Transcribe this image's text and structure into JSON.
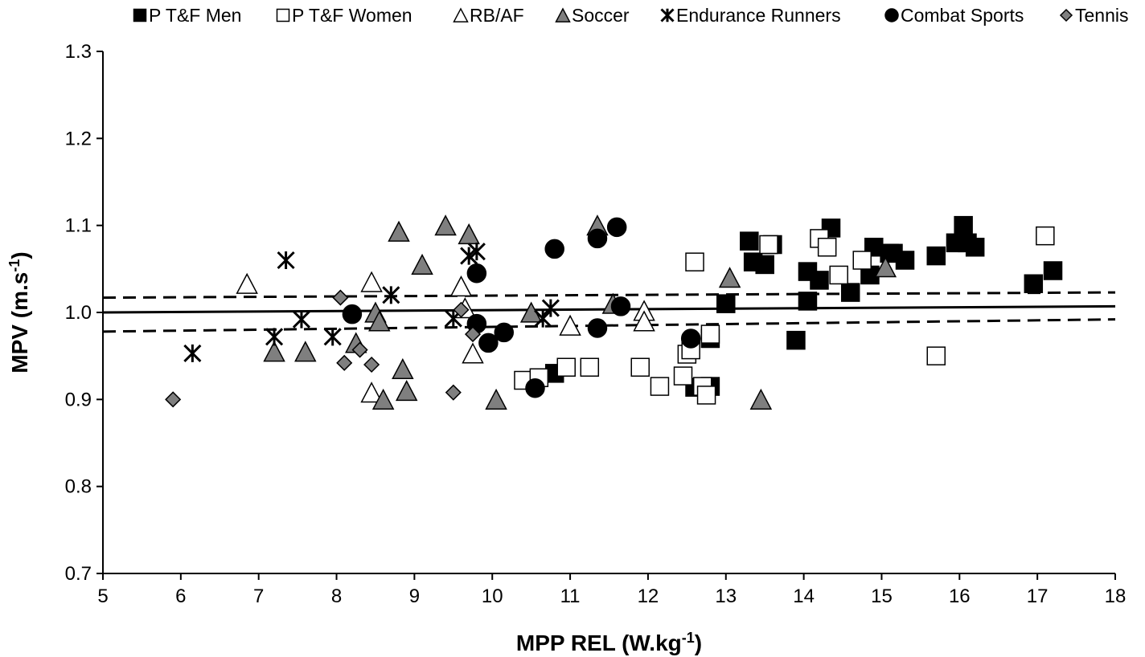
{
  "chart_data": {
    "type": "scatter",
    "title": "",
    "xlabel": "MPP REL (W.kg",
    "xlabel_sup": "-1",
    "xlabel_end": ")",
    "ylabel": "MPV (m.s",
    "ylabel_sup": "-1",
    "ylabel_end": ")",
    "xlim": [
      5,
      18
    ],
    "ylim": [
      0.7,
      1.3
    ],
    "x_ticks": [
      5,
      6,
      7,
      8,
      9,
      10,
      11,
      12,
      13,
      14,
      15,
      16,
      17,
      18
    ],
    "x_tick_labels": [
      "5",
      "6",
      "7",
      "8",
      "9",
      "10",
      "11",
      "12",
      "13",
      "14",
      "15",
      "16",
      "17",
      "18"
    ],
    "y_ticks": [
      0.7,
      0.8,
      0.9,
      1.0,
      1.1,
      1.2,
      1.3
    ],
    "y_tick_labels": [
      "0.7",
      "0.8",
      "0.9",
      "1.0",
      "1.1",
      "1.2",
      "1.3"
    ],
    "grid": false,
    "legend_position": "top",
    "marker_colors": {
      "black": "#000000",
      "white": "#ffffff",
      "gray": "#7f7f7f"
    },
    "series": [
      {
        "name": "P T&F Men",
        "marker": "square",
        "fill": "#000000",
        "points": [
          [
            10.8,
            0.93
          ],
          [
            12.6,
            0.914
          ],
          [
            12.8,
            0.97
          ],
          [
            12.8,
            0.915
          ],
          [
            13.0,
            1.01
          ],
          [
            13.3,
            1.082
          ],
          [
            13.35,
            1.058
          ],
          [
            13.5,
            1.055
          ],
          [
            13.6,
            1.078
          ],
          [
            13.9,
            0.968
          ],
          [
            14.05,
            1.047
          ],
          [
            14.05,
            1.013
          ],
          [
            14.2,
            1.037
          ],
          [
            14.35,
            1.097
          ],
          [
            14.6,
            1.023
          ],
          [
            14.85,
            1.043
          ],
          [
            14.9,
            1.075
          ],
          [
            15.1,
            1.068
          ],
          [
            15.15,
            1.068
          ],
          [
            15.3,
            1.06
          ],
          [
            15.7,
            1.065
          ],
          [
            15.95,
            1.08
          ],
          [
            16.05,
            1.1
          ],
          [
            16.1,
            1.08
          ],
          [
            16.2,
            1.075
          ],
          [
            16.95,
            1.033
          ],
          [
            17.2,
            1.048
          ]
        ]
      },
      {
        "name": "P T&F Women",
        "marker": "square",
        "fill": "#ffffff",
        "points": [
          [
            10.4,
            0.922
          ],
          [
            10.6,
            0.925
          ],
          [
            10.95,
            0.937
          ],
          [
            11.25,
            0.937
          ],
          [
            11.9,
            0.937
          ],
          [
            12.15,
            0.915
          ],
          [
            12.45,
            0.927
          ],
          [
            12.5,
            0.952
          ],
          [
            12.55,
            0.957
          ],
          [
            12.6,
            1.058
          ],
          [
            12.7,
            0.915
          ],
          [
            12.75,
            0.905
          ],
          [
            12.8,
            0.975
          ],
          [
            13.55,
            1.078
          ],
          [
            14.2,
            1.085
          ],
          [
            14.3,
            1.075
          ],
          [
            14.45,
            1.043
          ],
          [
            14.75,
            1.06
          ],
          [
            15.7,
            0.95
          ],
          [
            17.1,
            1.088
          ]
        ]
      },
      {
        "name": "RB/AF",
        "marker": "triangle",
        "fill": "#ffffff",
        "points": [
          [
            6.85,
            1.033
          ],
          [
            8.45,
            1.035
          ],
          [
            8.45,
            0.908
          ],
          [
            9.6,
            1.03
          ],
          [
            9.65,
            1.005
          ],
          [
            9.75,
            0.953
          ],
          [
            11.0,
            0.985
          ],
          [
            11.95,
            1.002
          ],
          [
            11.95,
            0.99
          ]
        ]
      },
      {
        "name": "Soccer",
        "marker": "triangle",
        "fill": "#7f7f7f",
        "points": [
          [
            7.2,
            0.955
          ],
          [
            7.6,
            0.955
          ],
          [
            8.25,
            0.965
          ],
          [
            8.5,
            1.0
          ],
          [
            8.55,
            0.99
          ],
          [
            8.6,
            0.9
          ],
          [
            8.8,
            1.093
          ],
          [
            8.85,
            0.935
          ],
          [
            8.9,
            0.91
          ],
          [
            9.1,
            1.055
          ],
          [
            9.4,
            1.1
          ],
          [
            9.7,
            1.09
          ],
          [
            10.05,
            0.9
          ],
          [
            10.5,
            1.0
          ],
          [
            11.35,
            1.1
          ],
          [
            11.55,
            1.01
          ],
          [
            13.05,
            1.04
          ],
          [
            13.45,
            0.9
          ],
          [
            15.05,
            1.052
          ]
        ]
      },
      {
        "name": "Endurance Runners",
        "marker": "asterisk",
        "fill": "#000000",
        "points": [
          [
            6.15,
            0.953
          ],
          [
            7.2,
            0.972
          ],
          [
            7.35,
            1.06
          ],
          [
            7.55,
            0.992
          ],
          [
            7.95,
            0.972
          ],
          [
            8.7,
            1.02
          ],
          [
            9.5,
            0.993
          ],
          [
            9.7,
            1.065
          ],
          [
            9.8,
            1.07
          ],
          [
            10.65,
            0.993
          ],
          [
            10.75,
            1.005
          ]
        ]
      },
      {
        "name": "Combat Sports",
        "marker": "circle",
        "fill": "#000000",
        "points": [
          [
            8.2,
            0.998
          ],
          [
            9.8,
            1.045
          ],
          [
            9.8,
            0.987
          ],
          [
            9.95,
            0.965
          ],
          [
            10.15,
            0.977
          ],
          [
            10.55,
            0.913
          ],
          [
            10.8,
            1.073
          ],
          [
            11.35,
            1.085
          ],
          [
            11.35,
            0.982
          ],
          [
            11.6,
            1.098
          ],
          [
            11.65,
            1.007
          ],
          [
            12.55,
            0.97
          ]
        ]
      },
      {
        "name": "Tennis",
        "marker": "diamond",
        "fill": "#7f7f7f",
        "points": [
          [
            5.9,
            0.9
          ],
          [
            8.05,
            1.017
          ],
          [
            8.1,
            0.942
          ],
          [
            8.3,
            0.957
          ],
          [
            8.45,
            0.94
          ],
          [
            9.5,
            0.908
          ],
          [
            9.6,
            1.003
          ],
          [
            9.75,
            0.975
          ]
        ]
      }
    ],
    "lines": [
      {
        "role": "fit",
        "style": "solid",
        "points": [
          [
            5,
            1.0
          ],
          [
            18,
            1.007
          ]
        ]
      },
      {
        "role": "ci-upper",
        "style": "dashed",
        "points": [
          [
            5,
            1.017
          ],
          [
            18,
            1.023
          ]
        ]
      },
      {
        "role": "ci-lower",
        "style": "dashed",
        "points": [
          [
            5,
            0.978
          ],
          [
            18,
            0.992
          ]
        ]
      }
    ]
  }
}
